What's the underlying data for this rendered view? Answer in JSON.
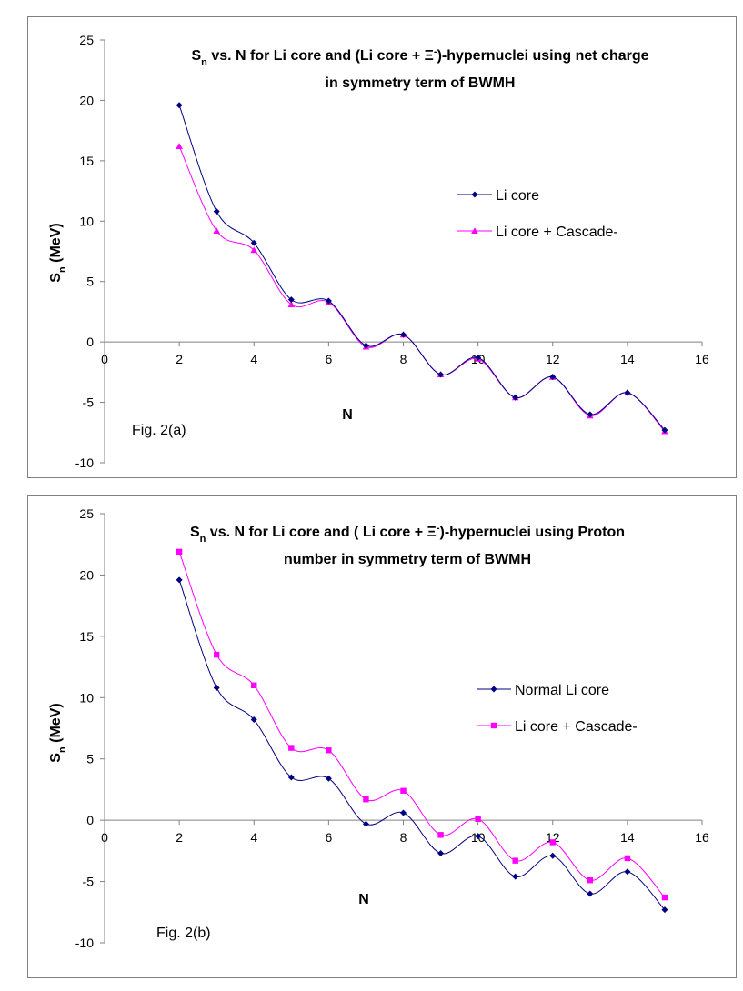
{
  "chart_data": [
    {
      "type": "line",
      "title_main": "S",
      "title_sub": "n",
      "title_rest": " vs. N for Li core and (Li core + Ξ",
      "title_sup": "-",
      "title_end": ")-hypernuclei using net charge",
      "title_line2": "in symmetry term of BWMH",
      "xlabel": "N",
      "ylabel_main": "S",
      "ylabel_sub": "n",
      "ylabel_rest": " (MeV)",
      "figure_label": "Fig. 2(a)",
      "xlim": [
        0,
        16
      ],
      "ylim": [
        -10,
        25
      ],
      "x_ticks": [
        "0",
        "2",
        "4",
        "6",
        "8",
        "10",
        "12",
        "14",
        "16"
      ],
      "y_ticks": [
        "-10",
        "-5",
        "0",
        "5",
        "10",
        "15",
        "20",
        "25"
      ],
      "x": [
        2,
        3,
        4,
        5,
        6,
        7,
        8,
        9,
        10,
        11,
        12,
        13,
        14,
        15
      ],
      "series": [
        {
          "name": "Li core",
          "color": "#000080",
          "marker": "diamond",
          "values": [
            19.6,
            10.8,
            8.2,
            3.5,
            3.4,
            -0.3,
            0.6,
            -2.7,
            -1.3,
            -4.6,
            -2.9,
            -6.0,
            -4.2,
            -7.3
          ]
        },
        {
          "name": "Li core + Cascade-",
          "color": "#ff00ff",
          "marker": "triangle",
          "values": [
            16.2,
            9.2,
            7.6,
            3.1,
            3.3,
            -0.4,
            0.6,
            -2.7,
            -1.4,
            -4.6,
            -2.9,
            -6.1,
            -4.2,
            -7.4
          ]
        }
      ]
    },
    {
      "type": "line",
      "title_main": "S",
      "title_sub": "n",
      "title_rest": " vs. N for Li core and ( Li core + Ξ",
      "title_sup": "-",
      "title_end": ")-hypernuclei using Proton",
      "title_line2": "number in symmetry term of BWMH",
      "xlabel": "N",
      "ylabel_main": "S",
      "ylabel_sub": "n",
      "ylabel_rest": " (MeV)",
      "figure_label": "Fig. 2(b)",
      "xlim": [
        0,
        16
      ],
      "ylim": [
        -10,
        25
      ],
      "x_ticks": [
        "0",
        "2",
        "4",
        "6",
        "8",
        "10",
        "12",
        "14",
        "16"
      ],
      "y_ticks": [
        "-10",
        "-5",
        "0",
        "5",
        "10",
        "15",
        "20",
        "25"
      ],
      "x": [
        2,
        3,
        4,
        5,
        6,
        7,
        8,
        9,
        10,
        11,
        12,
        13,
        14,
        15
      ],
      "series": [
        {
          "name": "Normal Li core",
          "color": "#000080",
          "marker": "diamond",
          "values": [
            19.6,
            10.8,
            8.2,
            3.5,
            3.4,
            -0.3,
            0.6,
            -2.7,
            -1.3,
            -4.6,
            -2.9,
            -6.0,
            -4.2,
            -7.3
          ]
        },
        {
          "name": "Li core + Cascade-",
          "color": "#ff00ff",
          "marker": "square",
          "values": [
            21.9,
            13.5,
            11.0,
            5.9,
            5.7,
            1.7,
            2.4,
            -1.2,
            0.1,
            -3.3,
            -1.8,
            -4.9,
            -3.1,
            -6.3
          ]
        }
      ]
    }
  ]
}
